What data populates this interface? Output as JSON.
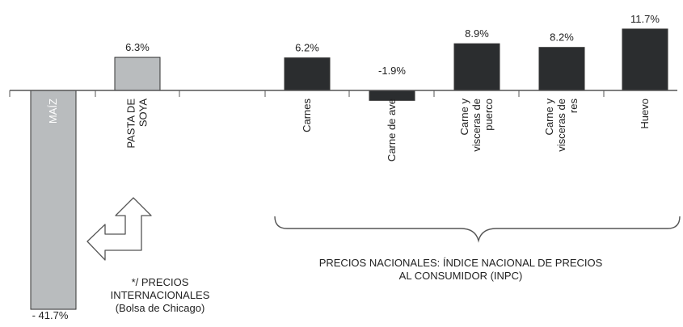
{
  "chart_data": {
    "type": "bar",
    "categories": [
      "MAÍZ",
      "PASTA DE SOYA",
      "",
      "Carnes",
      "Carne de ave",
      "Carne y vísceras de puerco",
      "Carne y vísceras de res",
      "Huevo"
    ],
    "category_lines": [
      [
        "MAÍZ"
      ],
      [
        "PASTA DE",
        "SOYA"
      ],
      [],
      [
        "Carnes"
      ],
      [
        "Carne de ave"
      ],
      [
        "Carne y",
        "visceras de",
        "puerco"
      ],
      [
        "Carne y",
        "visceras de",
        "res"
      ],
      [
        "Huevo"
      ]
    ],
    "values": [
      -41.7,
      6.3,
      null,
      6.2,
      -1.9,
      8.9,
      8.2,
      11.7
    ],
    "value_labels": [
      "- 41.7%",
      "6.3%",
      "",
      "6.2%",
      "-1.9%",
      "8.9%",
      "8.2%",
      "11.7%"
    ],
    "group": [
      "international",
      "international",
      null,
      "national",
      "national",
      "national",
      "national",
      "national"
    ],
    "colors": {
      "international": "#b9bcbe",
      "national": "#2b2d2f",
      "axis": "#555555",
      "text": "#222222"
    },
    "grid": false,
    "legend": "none"
  },
  "annotations": {
    "international_lines": [
      "*/ PRECIOS",
      "INTERNACIONALES",
      "(Bolsa de Chicago)"
    ],
    "national_lines": [
      "PRECIOS NACIONALES: ÍNDICE NACIONAL DE PRECIOS",
      "AL CONSUMIDOR (INPC)"
    ]
  },
  "icons": {
    "bracket": "curly-brace-icon",
    "arrow": "double-arrow-icon"
  }
}
